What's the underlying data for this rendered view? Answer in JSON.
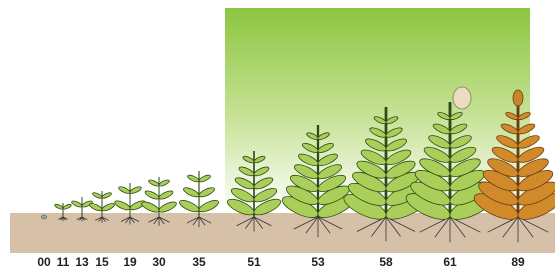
{
  "stages": [
    {
      "label": "00"
    },
    {
      "label": "11"
    },
    {
      "label": "13"
    },
    {
      "label": "15"
    },
    {
      "label": "19"
    },
    {
      "label": "30"
    },
    {
      "label": "35"
    },
    {
      "label": "51"
    },
    {
      "label": "53"
    },
    {
      "label": "58"
    },
    {
      "label": "61"
    },
    {
      "label": "89"
    }
  ]
}
